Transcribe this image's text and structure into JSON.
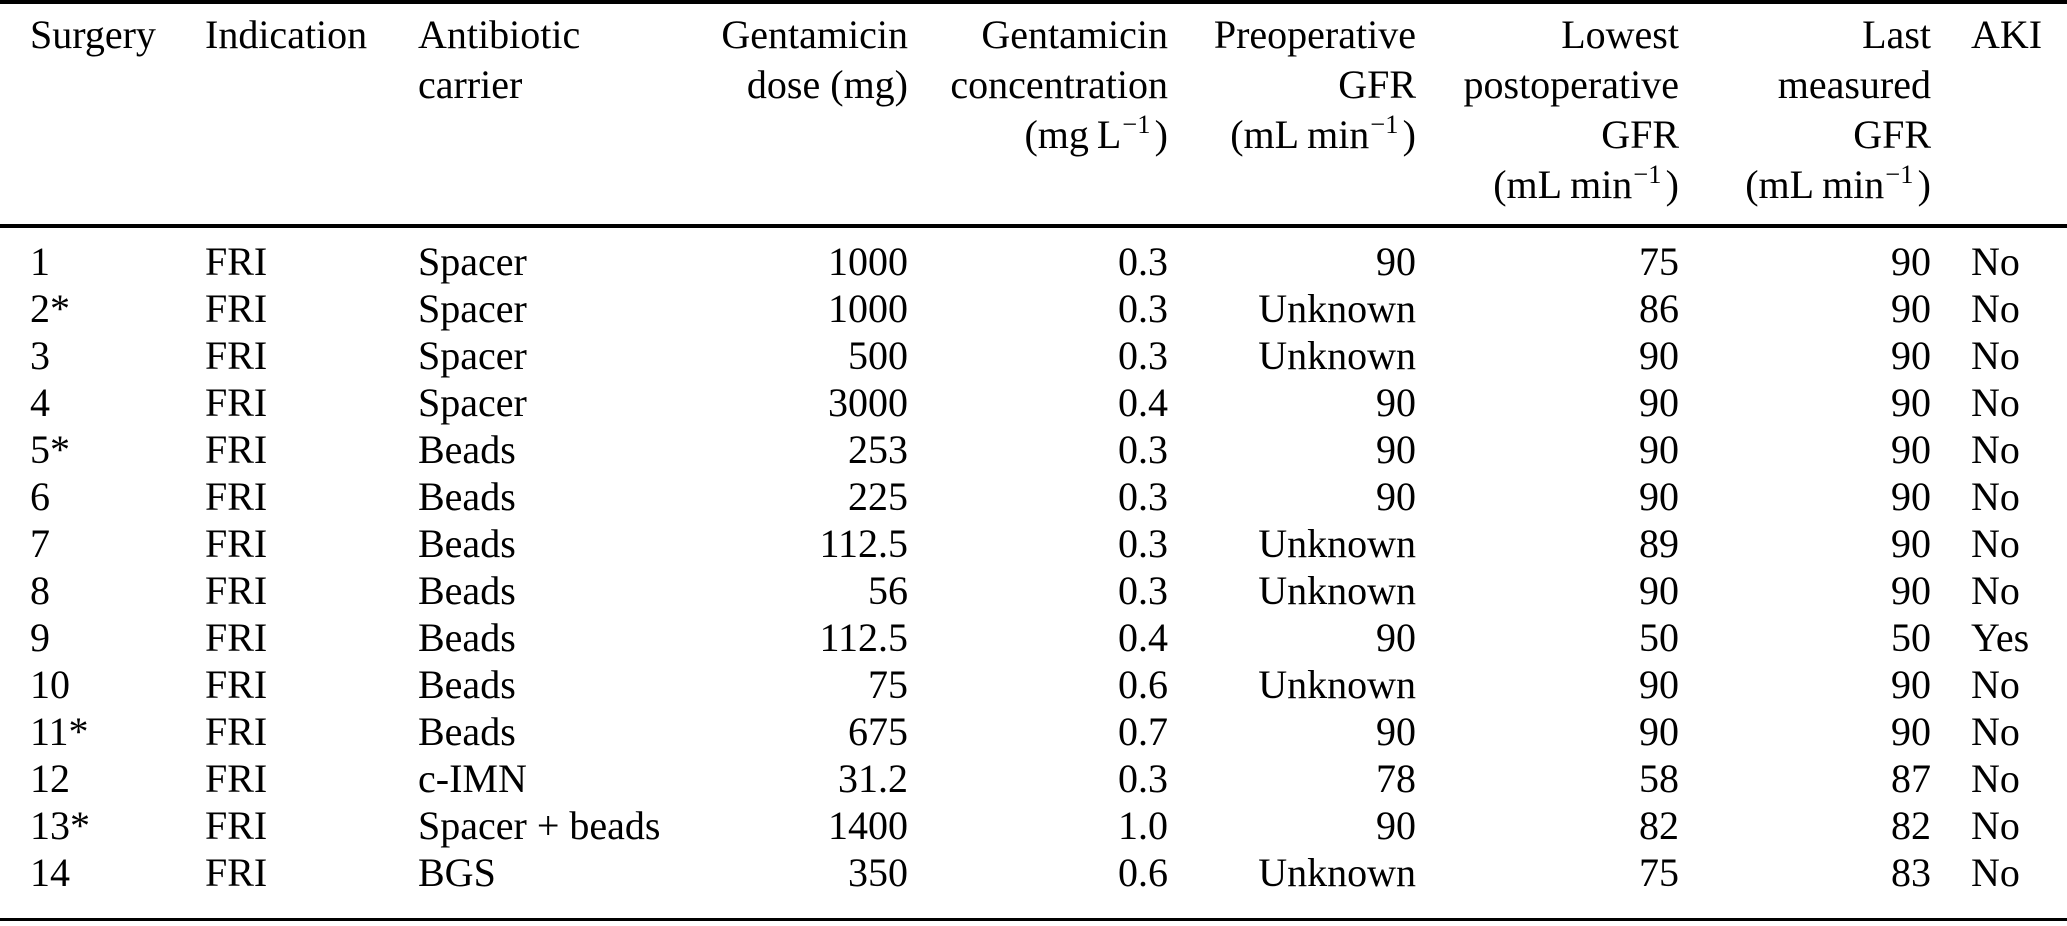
{
  "figure": {
    "background_color": "#ffffff",
    "text_color": "#000000",
    "rule_color": "#000000"
  },
  "table": {
    "columns": [
      {
        "key": "surgery",
        "align": "left",
        "header_lines": [
          "Surgery"
        ]
      },
      {
        "key": "indication",
        "align": "left",
        "header_lines": [
          "Indication"
        ]
      },
      {
        "key": "antibiotic-carrier",
        "align": "left",
        "header_lines": [
          "Antibiotic",
          "carrier"
        ]
      },
      {
        "key": "gentamicin-dose",
        "align": "right",
        "header_lines": [
          "Gentamicin",
          "dose (mg)"
        ]
      },
      {
        "key": "gentamicin-concentration",
        "align": "right",
        "header_lines": [
          "Gentamicin",
          "concentration"
        ],
        "unit": {
          "pre": "(mg L",
          "sup": "−1",
          "post": ")"
        }
      },
      {
        "key": "preoperative-gfr",
        "align": "right",
        "header_lines": [
          "Preoperative",
          "GFR"
        ],
        "unit": {
          "pre": "(mL min",
          "sup": "−1",
          "post": ")"
        }
      },
      {
        "key": "lowest-postoperative-gfr",
        "align": "right",
        "header_lines": [
          "Lowest",
          "postoperative",
          "GFR"
        ],
        "unit": {
          "pre": "(mL min",
          "sup": "−1",
          "post": ")"
        }
      },
      {
        "key": "last-measured-gfr",
        "align": "right",
        "header_lines": [
          "Last",
          "measured",
          "GFR"
        ],
        "unit": {
          "pre": "(mL min",
          "sup": "−1",
          "post": ")"
        }
      },
      {
        "key": "aki",
        "align": "left",
        "header_lines": [
          "AKI"
        ]
      }
    ],
    "rows": [
      [
        "1",
        "FRI",
        "Spacer",
        "1000",
        "0.3",
        "90",
        "75",
        "90",
        "No"
      ],
      [
        "2*",
        "FRI",
        "Spacer",
        "1000",
        "0.3",
        "Unknown",
        "86",
        "90",
        "No"
      ],
      [
        "3",
        "FRI",
        "Spacer",
        "500",
        "0.3",
        "Unknown",
        "90",
        "90",
        "No"
      ],
      [
        "4",
        "FRI",
        "Spacer",
        "3000",
        "0.4",
        "90",
        "90",
        "90",
        "No"
      ],
      [
        "5*",
        "FRI",
        "Beads",
        "253",
        "0.3",
        "90",
        "90",
        "90",
        "No"
      ],
      [
        "6",
        "FRI",
        "Beads",
        "225",
        "0.3",
        "90",
        "90",
        "90",
        "No"
      ],
      [
        "7",
        "FRI",
        "Beads",
        "112.5",
        "0.3",
        "Unknown",
        "89",
        "90",
        "No"
      ],
      [
        "8",
        "FRI",
        "Beads",
        "56",
        "0.3",
        "Unknown",
        "90",
        "90",
        "No"
      ],
      [
        "9",
        "FRI",
        "Beads",
        "112.5",
        "0.4",
        "90",
        "50",
        "50",
        "Yes"
      ],
      [
        "10",
        "FRI",
        "Beads",
        "75",
        "0.6",
        "Unknown",
        "90",
        "90",
        "No"
      ],
      [
        "11*",
        "FRI",
        "Beads",
        "675",
        "0.7",
        "90",
        "90",
        "90",
        "No"
      ],
      [
        "12",
        "FRI",
        "c-IMN",
        "31.2",
        "0.3",
        "78",
        "58",
        "87",
        "No"
      ],
      [
        "13*",
        "FRI",
        "Spacer + beads",
        "1400",
        "1.0",
        "90",
        "82",
        "82",
        "No"
      ],
      [
        "14",
        "FRI",
        "BGS",
        "350",
        "0.6",
        "Unknown",
        "75",
        "83",
        "No"
      ]
    ]
  },
  "chart_data": {
    "type": "table",
    "columns": [
      "Surgery",
      "Indication",
      "Antibiotic carrier",
      "Gentamicin dose (mg)",
      "Gentamicin concentration (mg L-1)",
      "Preoperative GFR (mL min-1)",
      "Lowest postoperative GFR (mL min-1)",
      "Last measured GFR (mL min-1)",
      "AKI"
    ],
    "rows": [
      [
        "1",
        "FRI",
        "Spacer",
        1000,
        0.3,
        "90",
        75,
        90,
        "No"
      ],
      [
        "2*",
        "FRI",
        "Spacer",
        1000,
        0.3,
        "Unknown",
        86,
        90,
        "No"
      ],
      [
        "3",
        "FRI",
        "Spacer",
        500,
        0.3,
        "Unknown",
        90,
        90,
        "No"
      ],
      [
        "4",
        "FRI",
        "Spacer",
        3000,
        0.4,
        "90",
        90,
        90,
        "No"
      ],
      [
        "5*",
        "FRI",
        "Beads",
        253,
        0.3,
        "90",
        90,
        90,
        "No"
      ],
      [
        "6",
        "FRI",
        "Beads",
        225,
        0.3,
        "90",
        90,
        90,
        "No"
      ],
      [
        "7",
        "FRI",
        "Beads",
        112.5,
        0.3,
        "Unknown",
        89,
        90,
        "No"
      ],
      [
        "8",
        "FRI",
        "Beads",
        56,
        0.3,
        "Unknown",
        90,
        90,
        "No"
      ],
      [
        "9",
        "FRI",
        "Beads",
        112.5,
        0.4,
        "90",
        50,
        50,
        "Yes"
      ],
      [
        "10",
        "FRI",
        "Beads",
        75,
        0.6,
        "Unknown",
        90,
        90,
        "No"
      ],
      [
        "11*",
        "FRI",
        "Beads",
        675,
        0.7,
        "90",
        90,
        90,
        "No"
      ],
      [
        "12",
        "FRI",
        "c-IMN",
        31.2,
        0.3,
        "78",
        58,
        87,
        "No"
      ],
      [
        "13*",
        "FRI",
        "Spacer + beads",
        1400,
        1.0,
        "90",
        82,
        82,
        "No"
      ],
      [
        "14",
        "FRI",
        "BGS",
        350,
        0.6,
        "Unknown",
        75,
        83,
        "No"
      ]
    ]
  }
}
